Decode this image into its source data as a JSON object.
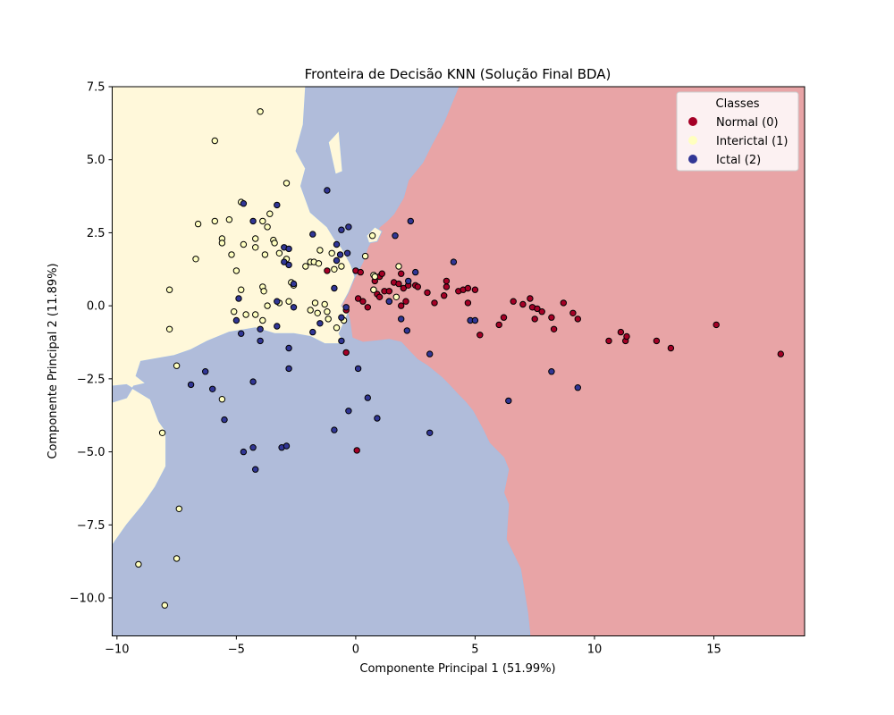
{
  "chart_data": {
    "type": "scatter",
    "title": "Fronteira de Decisão KNN (Solução Final BDA)",
    "xlabel": "Componente Principal 1 (51.99%)",
    "ylabel": "Componente Principal 2 (11.89%)",
    "xlim": [
      -10.2,
      18.8
    ],
    "ylim": [
      -11.3,
      7.5
    ],
    "x_ticks": [
      -10,
      -5,
      0,
      5,
      10,
      15
    ],
    "y_ticks": [
      -10.0,
      -7.5,
      -5.0,
      -2.5,
      0.0,
      2.5,
      5.0,
      7.5
    ],
    "x_tick_labels": [
      "−10",
      "−5",
      "0",
      "5",
      "10",
      "15"
    ],
    "y_tick_labels": [
      "−10.0",
      "−7.5",
      "−5.0",
      "−2.5",
      "0.0",
      "2.5",
      "5.0",
      "7.5"
    ],
    "legend": {
      "title": "Classes",
      "position": "top-right",
      "entries": [
        "Normal (0)",
        "Interictal (1)",
        "Ictal (2)"
      ]
    },
    "colors": {
      "normal": "#a50026",
      "interictal": "#ffffbf",
      "ictal": "#313695",
      "region_normal": "#e8a4a6",
      "region_interictal": "#fff8da",
      "region_ictal": "#b0bcda"
    },
    "decision_regions": {
      "interictal": [
        [
          -10.2,
          7.5
        ],
        [
          -2.1,
          7.5
        ],
        [
          -2.2,
          6.2
        ],
        [
          -2.5,
          5.3
        ],
        [
          -2.1,
          4.7
        ],
        [
          -2.3,
          4.1
        ],
        [
          -1.9,
          3.2
        ],
        [
          -1.2,
          2.7
        ],
        [
          -0.9,
          2.3
        ],
        [
          -0.6,
          2.0
        ],
        [
          -0.2,
          1.4
        ],
        [
          0.0,
          0.9
        ],
        [
          0.15,
          0.4
        ],
        [
          -0.2,
          0.0
        ],
        [
          -0.45,
          -0.5
        ],
        [
          -0.7,
          -0.95
        ],
        [
          -0.45,
          -1.3
        ],
        [
          -1.3,
          -1.3
        ],
        [
          -1.9,
          -1.05
        ],
        [
          -2.6,
          -0.95
        ],
        [
          -3.4,
          -0.95
        ],
        [
          -4.2,
          -0.75
        ],
        [
          -5.3,
          -0.9
        ],
        [
          -6.2,
          -1.2
        ],
        [
          -6.9,
          -1.5
        ],
        [
          -7.6,
          -1.7
        ],
        [
          -8.3,
          -1.8
        ],
        [
          -9.0,
          -1.9
        ],
        [
          -9.2,
          -2.4
        ],
        [
          -8.8,
          -2.65
        ],
        [
          -9.3,
          -2.75
        ],
        [
          -9.6,
          -3.15
        ],
        [
          -10.2,
          -3.3
        ],
        [
          -10.2,
          -8.2
        ],
        [
          -9.6,
          -7.5
        ],
        [
          -8.9,
          -6.8
        ],
        [
          -8.4,
          -6.2
        ],
        [
          -7.95,
          -5.5
        ],
        [
          -7.95,
          -4.3
        ],
        [
          -8.25,
          -3.95
        ],
        [
          -8.6,
          -3.2
        ],
        [
          -9.6,
          -2.7
        ],
        [
          -10.2,
          -2.75
        ]
      ],
      "normal": [
        [
          4.3,
          7.5
        ],
        [
          18.8,
          7.5
        ],
        [
          18.8,
          -11.3
        ],
        [
          7.3,
          -11.3
        ],
        [
          7.2,
          -10.5
        ],
        [
          6.9,
          -9.0
        ],
        [
          6.3,
          -8.0
        ],
        [
          6.4,
          -6.8
        ],
        [
          6.2,
          -6.4
        ],
        [
          6.4,
          -5.6
        ],
        [
          6.2,
          -5.2
        ],
        [
          5.6,
          -4.7
        ],
        [
          5.3,
          -4.2
        ],
        [
          4.9,
          -3.6
        ],
        [
          4.6,
          -3.3
        ],
        [
          4.3,
          -3.05
        ],
        [
          3.9,
          -2.7
        ],
        [
          3.6,
          -2.45
        ],
        [
          3.0,
          -2.05
        ],
        [
          2.6,
          -1.85
        ],
        [
          2.3,
          -1.6
        ],
        [
          1.9,
          -1.25
        ],
        [
          1.4,
          -1.15
        ],
        [
          0.9,
          -1.2
        ],
        [
          0.3,
          -1.25
        ],
        [
          -0.15,
          -1.1
        ],
        [
          -0.25,
          -0.5
        ],
        [
          -0.35,
          -0.2
        ],
        [
          -0.6,
          0.0
        ],
        [
          -0.3,
          0.45
        ],
        [
          -0.05,
          0.95
        ],
        [
          0.3,
          1.5
        ],
        [
          0.5,
          2.0
        ],
        [
          1.0,
          2.7
        ],
        [
          1.3,
          2.9
        ],
        [
          1.6,
          3.15
        ],
        [
          2.0,
          3.7
        ],
        [
          2.2,
          4.3
        ],
        [
          2.8,
          4.9
        ],
        [
          3.2,
          5.55
        ],
        [
          3.7,
          6.3
        ]
      ],
      "interictal_pockets": [
        [
          [
            -1.15,
            5.6
          ],
          [
            -0.7,
            6.0
          ],
          [
            -0.55,
            4.6
          ],
          [
            -0.85,
            4.5
          ]
        ],
        [
          [
            0.45,
            2.4
          ],
          [
            0.8,
            2.7
          ],
          [
            1.1,
            2.55
          ],
          [
            0.9,
            2.2
          ],
          [
            0.55,
            2.15
          ]
        ]
      ]
    },
    "series": [
      {
        "name": "Normal (0)",
        "class": 0,
        "points": [
          [
            -1.2,
            1.2
          ],
          [
            0.0,
            1.2
          ],
          [
            0.2,
            1.15
          ],
          [
            0.8,
            0.85
          ],
          [
            1.0,
            1.0
          ],
          [
            1.1,
            1.1
          ],
          [
            0.75,
            0.55
          ],
          [
            1.2,
            0.5
          ],
          [
            0.9,
            0.4
          ],
          [
            1.0,
            0.3
          ],
          [
            1.4,
            0.5
          ],
          [
            1.6,
            0.8
          ],
          [
            1.8,
            0.75
          ],
          [
            1.9,
            1.1
          ],
          [
            2.0,
            0.6
          ],
          [
            2.2,
            0.7
          ],
          [
            2.5,
            0.7
          ],
          [
            2.6,
            0.65
          ],
          [
            3.0,
            0.45
          ],
          [
            3.3,
            0.1
          ],
          [
            3.7,
            0.35
          ],
          [
            3.8,
            0.85
          ],
          [
            3.8,
            0.65
          ],
          [
            4.3,
            0.5
          ],
          [
            4.5,
            0.55
          ],
          [
            4.7,
            0.6
          ],
          [
            5.0,
            0.55
          ],
          [
            5.2,
            -1.0
          ],
          [
            4.7,
            0.1
          ],
          [
            6.0,
            -0.65
          ],
          [
            6.2,
            -0.4
          ],
          [
            6.6,
            0.15
          ],
          [
            7.0,
            0.05
          ],
          [
            7.3,
            0.25
          ],
          [
            7.4,
            -0.05
          ],
          [
            7.6,
            -0.1
          ],
          [
            7.8,
            -0.2
          ],
          [
            7.5,
            -0.45
          ],
          [
            8.2,
            -0.4
          ],
          [
            8.3,
            -0.8
          ],
          [
            8.7,
            0.1
          ],
          [
            9.1,
            -0.25
          ],
          [
            9.3,
            -0.45
          ],
          [
            10.6,
            -1.2
          ],
          [
            11.1,
            -0.9
          ],
          [
            11.3,
            -1.2
          ],
          [
            11.35,
            -1.05
          ],
          [
            12.6,
            -1.2
          ],
          [
            13.2,
            -1.45
          ],
          [
            15.1,
            -0.65
          ],
          [
            17.8,
            -1.65
          ],
          [
            1.9,
            0.0
          ],
          [
            1.4,
            0.15
          ],
          [
            0.5,
            -0.05
          ],
          [
            0.3,
            0.15
          ],
          [
            0.1,
            0.25
          ],
          [
            -0.4,
            -0.15
          ],
          [
            -0.4,
            -1.6
          ],
          [
            0.05,
            -4.95
          ],
          [
            2.1,
            0.15
          ]
        ]
      },
      {
        "name": "Interictal (1)",
        "class": 1,
        "points": [
          [
            -4.0,
            6.65
          ],
          [
            -5.9,
            5.65
          ],
          [
            -2.9,
            4.2
          ],
          [
            -4.8,
            3.55
          ],
          [
            -6.6,
            2.8
          ],
          [
            -5.9,
            2.9
          ],
          [
            -5.3,
            2.95
          ],
          [
            -3.9,
            2.9
          ],
          [
            -3.6,
            3.15
          ],
          [
            -3.7,
            2.7
          ],
          [
            -5.6,
            2.3
          ],
          [
            -5.6,
            2.15
          ],
          [
            -4.7,
            2.1
          ],
          [
            -4.2,
            2.3
          ],
          [
            -4.2,
            2.0
          ],
          [
            -3.45,
            2.25
          ],
          [
            -3.4,
            2.15
          ],
          [
            -3.8,
            1.75
          ],
          [
            -5.2,
            1.75
          ],
          [
            -6.7,
            1.6
          ],
          [
            -5.0,
            1.2
          ],
          [
            -3.2,
            1.8
          ],
          [
            -2.9,
            1.6
          ],
          [
            -2.1,
            1.35
          ],
          [
            -1.9,
            1.5
          ],
          [
            -1.75,
            1.5
          ],
          [
            -1.55,
            1.45
          ],
          [
            -1.5,
            1.9
          ],
          [
            -1.0,
            1.8
          ],
          [
            -0.9,
            1.25
          ],
          [
            -0.6,
            1.35
          ],
          [
            -2.7,
            0.8
          ],
          [
            -2.6,
            0.7
          ],
          [
            -3.9,
            0.65
          ],
          [
            -3.85,
            0.5
          ],
          [
            -4.8,
            0.55
          ],
          [
            -7.8,
            0.55
          ],
          [
            -3.2,
            0.1
          ],
          [
            -2.8,
            0.15
          ],
          [
            -1.7,
            0.1
          ],
          [
            -1.3,
            0.05
          ],
          [
            -3.7,
            0.0
          ],
          [
            -4.2,
            -0.3
          ],
          [
            -4.6,
            -0.3
          ],
          [
            -5.1,
            -0.2
          ],
          [
            -3.9,
            -0.5
          ],
          [
            -1.9,
            -0.15
          ],
          [
            -1.6,
            -0.25
          ],
          [
            -1.2,
            -0.2
          ],
          [
            -1.15,
            -0.45
          ],
          [
            -0.8,
            -0.75
          ],
          [
            -0.5,
            -0.5
          ],
          [
            -7.8,
            -0.8
          ],
          [
            -7.5,
            -2.05
          ],
          [
            -5.6,
            -3.2
          ],
          [
            -8.1,
            -4.35
          ],
          [
            -7.4,
            -6.95
          ],
          [
            -7.5,
            -8.65
          ],
          [
            -9.1,
            -8.85
          ],
          [
            -8.0,
            -10.25
          ],
          [
            0.7,
            2.4
          ],
          [
            0.4,
            1.7
          ],
          [
            0.75,
            1.05
          ],
          [
            0.8,
            1.0
          ],
          [
            0.75,
            0.55
          ],
          [
            1.8,
            1.35
          ],
          [
            1.7,
            0.3
          ]
        ]
      },
      {
        "name": "Ictal (2)",
        "class": 2,
        "points": [
          [
            -1.2,
            3.95
          ],
          [
            -4.7,
            3.5
          ],
          [
            -3.3,
            3.45
          ],
          [
            -4.3,
            2.9
          ],
          [
            -1.8,
            2.45
          ],
          [
            -3.0,
            2.0
          ],
          [
            -2.8,
            1.95
          ],
          [
            -3.0,
            1.5
          ],
          [
            -2.8,
            1.4
          ],
          [
            -2.6,
            0.75
          ],
          [
            -0.8,
            2.1
          ],
          [
            -0.6,
            2.6
          ],
          [
            -0.3,
            2.7
          ],
          [
            -0.65,
            1.75
          ],
          [
            -0.35,
            1.8
          ],
          [
            -0.8,
            1.55
          ],
          [
            -0.9,
            0.6
          ],
          [
            -2.6,
            -0.05
          ],
          [
            -4.9,
            0.25
          ],
          [
            -3.3,
            0.15
          ],
          [
            -0.4,
            -0.05
          ],
          [
            -0.6,
            -0.4
          ],
          [
            -1.5,
            -0.6
          ],
          [
            -1.8,
            -0.9
          ],
          [
            -0.6,
            -1.2
          ],
          [
            -4.8,
            -0.95
          ],
          [
            -5.0,
            -0.5
          ],
          [
            -3.3,
            -0.7
          ],
          [
            -4.0,
            -0.8
          ],
          [
            -4.0,
            -1.2
          ],
          [
            -2.8,
            -1.45
          ],
          [
            -2.8,
            -2.15
          ],
          [
            -4.3,
            -2.6
          ],
          [
            -6.3,
            -2.25
          ],
          [
            -6.9,
            -2.7
          ],
          [
            -6.0,
            -2.85
          ],
          [
            -5.5,
            -3.9
          ],
          [
            -4.7,
            -5.0
          ],
          [
            -4.3,
            -4.85
          ],
          [
            -4.2,
            -5.6
          ],
          [
            -3.1,
            -4.85
          ],
          [
            -2.9,
            -4.8
          ],
          [
            -0.9,
            -4.25
          ],
          [
            -0.3,
            -3.6
          ],
          [
            0.1,
            -2.15
          ],
          [
            0.5,
            -3.15
          ],
          [
            0.9,
            -3.85
          ],
          [
            3.1,
            -4.35
          ],
          [
            3.1,
            -1.65
          ],
          [
            2.3,
            2.9
          ],
          [
            1.65,
            2.4
          ],
          [
            2.5,
            1.15
          ],
          [
            4.1,
            1.5
          ],
          [
            2.2,
            0.85
          ],
          [
            1.4,
            0.15
          ],
          [
            1.9,
            -0.45
          ],
          [
            2.15,
            -0.85
          ],
          [
            4.8,
            -0.5
          ],
          [
            5.0,
            -0.5
          ],
          [
            6.4,
            -3.25
          ],
          [
            8.2,
            -2.25
          ],
          [
            9.3,
            -2.8
          ]
        ]
      }
    ]
  }
}
